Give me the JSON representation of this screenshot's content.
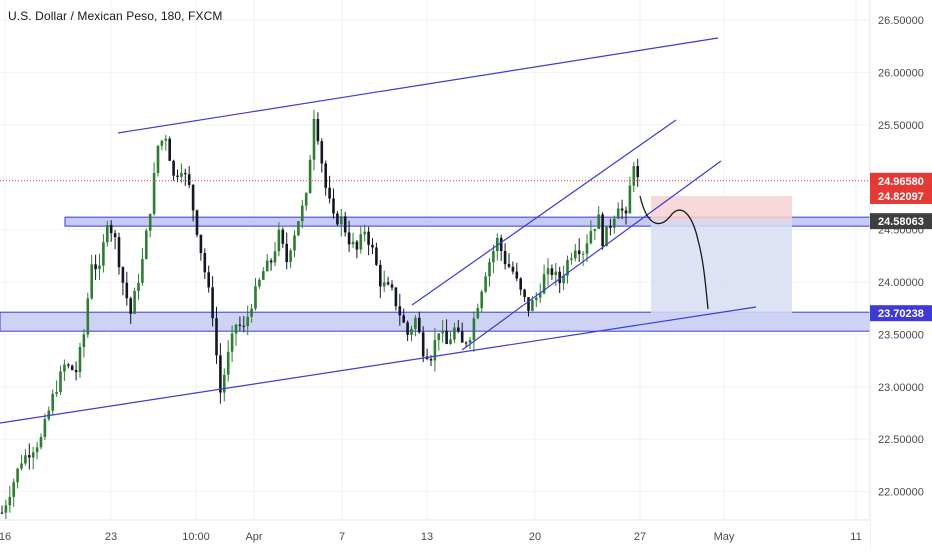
{
  "header": {
    "title": "U.S. Dollar / Mexican Peso, 180, FXCM"
  },
  "colors": {
    "up_candle": "#2e7d32",
    "down_candle": "#131722",
    "trendline": "#3d3ad6",
    "zone_fill": "#c5cbf5",
    "zone_border": "#3d3ad6",
    "current_price_line": "#e53935",
    "stop_zone": "#f7d1d1",
    "target_zone": "#d7ddf2",
    "axis_text": "#4a4a4a"
  },
  "chart_data": {
    "type": "candlestick",
    "title": "U.S. Dollar / Mexican Peso, 180, FXCM",
    "ylim": [
      21.75,
      26.75
    ],
    "y_ticks": [
      "26.50000",
      "26.00000",
      "25.50000",
      "25.00000",
      "24.50000",
      "24.00000",
      "23.50000",
      "23.00000",
      "22.50000",
      "22.00000"
    ],
    "x_ticks": [
      "16",
      "23",
      "10:00",
      "Apr",
      "7",
      "13",
      "20",
      "27",
      "May",
      "11"
    ],
    "price_labels": [
      {
        "text": "24.96580",
        "value": 24.9658,
        "style": "current"
      },
      {
        "text": "24.82097",
        "value": 24.82097,
        "style": "stop"
      },
      {
        "text": "24.58063",
        "value": 24.58063,
        "style": "entry"
      },
      {
        "text": "23.70238",
        "value": 23.70238,
        "style": "target"
      }
    ],
    "path_points": [
      [
        0,
        21.8
      ],
      [
        5,
        22.3
      ],
      [
        10,
        22.5
      ],
      [
        13,
        22.9
      ],
      [
        16,
        23.2
      ],
      [
        19,
        23.15
      ],
      [
        21,
        23.5
      ],
      [
        23,
        24.2
      ],
      [
        25,
        24.1
      ],
      [
        27,
        24.6
      ],
      [
        29,
        24.4
      ],
      [
        31,
        24.0
      ],
      [
        33,
        23.7
      ],
      [
        36,
        24.2
      ],
      [
        38,
        24.7
      ],
      [
        40,
        25.3
      ],
      [
        42,
        25.4
      ],
      [
        44,
        25.0
      ],
      [
        46,
        25.1
      ],
      [
        48,
        24.9
      ],
      [
        50,
        24.5
      ],
      [
        52,
        24.1
      ],
      [
        54,
        23.7
      ],
      [
        55,
        23.3
      ],
      [
        56,
        22.95
      ],
      [
        58,
        23.3
      ],
      [
        60,
        23.6
      ],
      [
        62,
        23.55
      ],
      [
        64,
        23.8
      ],
      [
        67,
        24.1
      ],
      [
        69,
        24.2
      ],
      [
        71,
        24.45
      ],
      [
        73,
        24.2
      ],
      [
        74,
        24.35
      ],
      [
        76,
        24.6
      ],
      [
        78,
        24.8
      ],
      [
        80,
        25.6
      ],
      [
        81,
        25.4
      ],
      [
        83,
        24.9
      ],
      [
        85,
        24.6
      ],
      [
        87,
        24.6
      ],
      [
        89,
        24.4
      ],
      [
        91,
        24.3
      ],
      [
        93,
        24.5
      ],
      [
        95,
        24.3
      ],
      [
        97,
        24.0
      ],
      [
        100,
        23.9
      ],
      [
        102,
        23.7
      ],
      [
        104,
        23.5
      ],
      [
        106,
        23.65
      ],
      [
        108,
        23.35
      ],
      [
        110,
        23.3
      ],
      [
        112,
        23.55
      ],
      [
        114,
        23.4
      ],
      [
        116,
        23.55
      ],
      [
        118,
        23.4
      ],
      [
        120,
        23.5
      ],
      [
        122,
        23.8
      ],
      [
        124,
        24.1
      ],
      [
        126,
        24.3
      ],
      [
        127,
        24.4
      ],
      [
        129,
        24.2
      ],
      [
        131,
        24.1
      ],
      [
        133,
        23.9
      ],
      [
        135,
        23.75
      ],
      [
        137,
        23.85
      ],
      [
        139,
        24.05
      ],
      [
        141,
        24.1
      ],
      [
        143,
        24.0
      ],
      [
        145,
        24.2
      ],
      [
        147,
        24.35
      ],
      [
        149,
        24.3
      ],
      [
        151,
        24.5
      ],
      [
        153,
        24.6
      ],
      [
        154,
        24.4
      ],
      [
        156,
        24.55
      ],
      [
        158,
        24.75
      ],
      [
        160,
        24.6
      ],
      [
        161,
        24.9
      ],
      [
        162,
        25.15
      ],
      [
        163,
        24.97
      ]
    ]
  }
}
